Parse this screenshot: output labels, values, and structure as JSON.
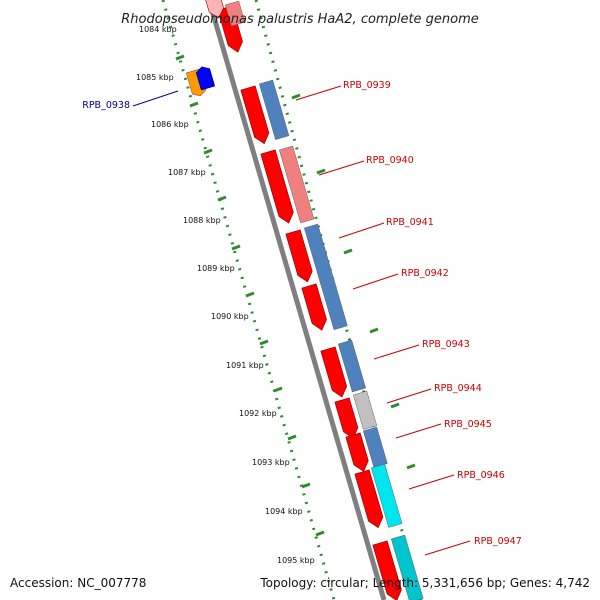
{
  "title": "Rhodopseudomonas palustris HaA2, complete genome",
  "footer": {
    "accession": "Accession: NC_007778",
    "summary": "Topology: circular; Length: 5,331,656 bp; Genes: 4,742"
  },
  "colors": {
    "backbone": "#7f7f7f",
    "ruler": "#2e8b2e",
    "cds_forward": "#ff0000",
    "cds_label": "#cc0000",
    "highlight_label": "#000099",
    "cog_blue": "#4f81bd",
    "cog_pink": "#f08080",
    "cog_grey": "#c0c0c0",
    "cog_cyan": "#00e5ee",
    "cog_teal": "#00c5cd",
    "cog_orange": "#ff9900",
    "cog_darkblue": "#0000ff"
  },
  "ticks": [
    "1084 kbp",
    "1085 kbp",
    "1086 kbp",
    "1087 kbp",
    "1088 kbp",
    "1089 kbp",
    "1090 kbp",
    "1091 kbp",
    "1092 kbp",
    "1093 kbp",
    "1094 kbp",
    "1095 kbp"
  ],
  "highlight_gene": {
    "label": "RPB_0938"
  },
  "gene_labels": [
    "RPB_0939",
    "RPB_0940",
    "RPB_0941",
    "RPB_0942",
    "RPB_0943",
    "RPB_0944",
    "RPB_0945",
    "RPB_0946",
    "RPB_0947"
  ]
}
